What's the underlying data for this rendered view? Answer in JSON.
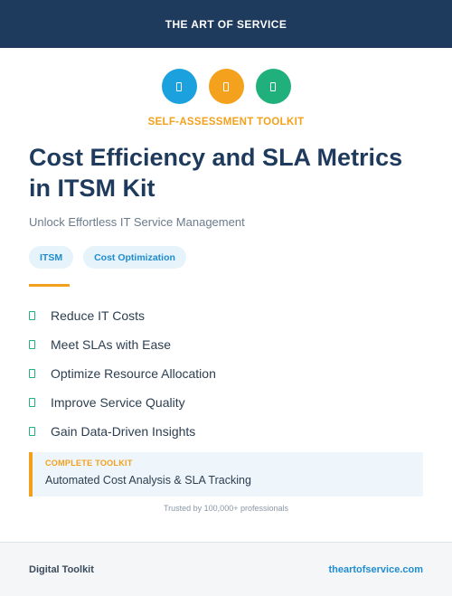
{
  "header": {
    "brand": "THE ART OF SERVICE"
  },
  "icons": [
    {
      "name": "document-icon",
      "color": "#1ba1dd"
    },
    {
      "name": "document-icon",
      "color": "#f4a21d"
    },
    {
      "name": "document-icon",
      "color": "#1fb07b"
    }
  ],
  "kicker": "SELF-ASSESSMENT TOOLKIT",
  "title": "Cost Efficiency and SLA Metrics in ITSM Kit",
  "subtitle": "Unlock Effortless IT Service Management",
  "tags": [
    "ITSM",
    "Cost Optimization"
  ],
  "features": [
    "Reduce IT Costs",
    "Meet SLAs with Ease",
    "Optimize Resource Allocation",
    "Improve Service Quality",
    "Gain Data-Driven Insights"
  ],
  "callout": {
    "label": "COMPLETE TOOLKIT",
    "value": "Automated Cost Analysis & SLA Tracking"
  },
  "trusted": "Trusted by 100,000+ professionals",
  "footer": {
    "left": "Digital Toolkit",
    "right": "theartofservice.com"
  },
  "colors": {
    "navy": "#1e3a5c",
    "accent": "#f3a11c",
    "blue": "#1f8ccf",
    "green": "#1fb07b"
  }
}
